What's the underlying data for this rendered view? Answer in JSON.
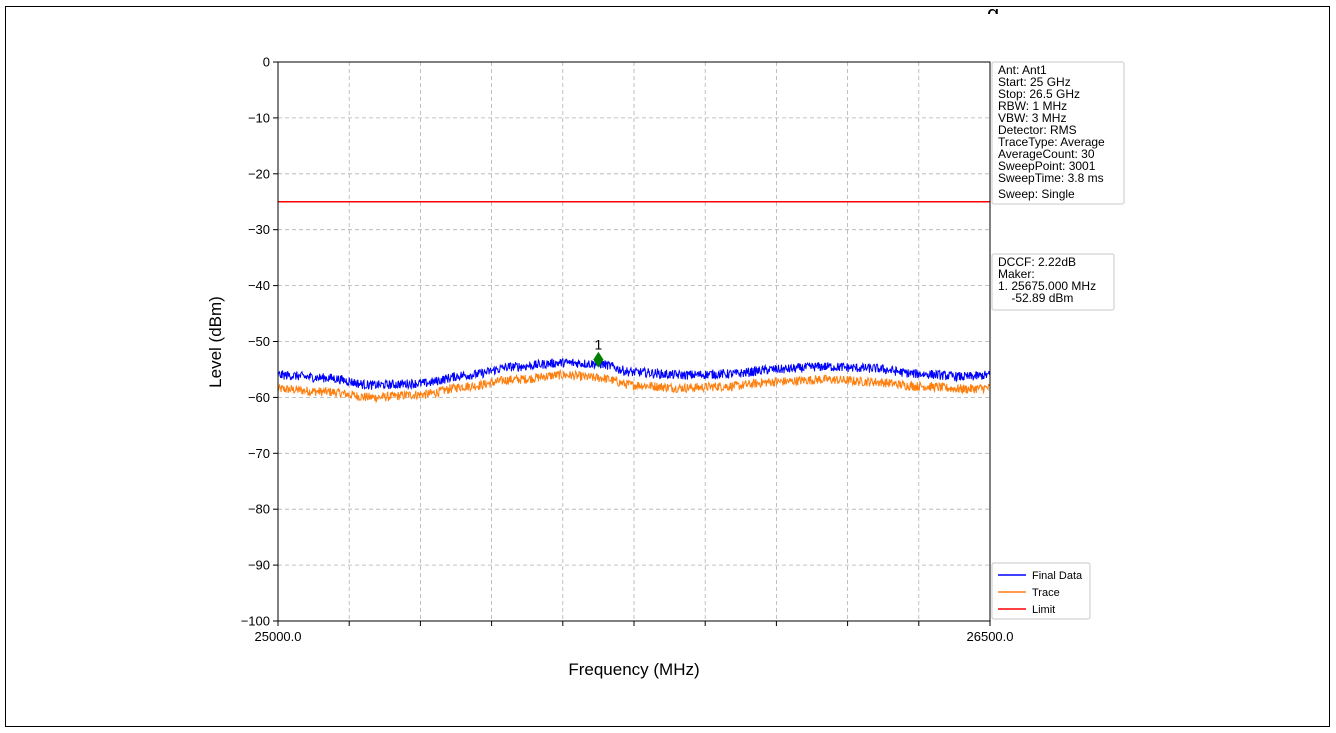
{
  "page": {
    "top_glyph": "g"
  },
  "chart_data": {
    "type": "line",
    "xlabel": "Frequency (MHz)",
    "ylabel": "Level (dBm)",
    "xlim": [
      25000.0,
      26500.0
    ],
    "ylim": [
      -100,
      0
    ],
    "x_tick_labels": [
      "25000.0",
      "26500.0"
    ],
    "x_minor_ticks": [
      25150,
      25300,
      25450,
      25600,
      25750,
      25900,
      26050,
      26200,
      26350
    ],
    "y_ticks": [
      0,
      -10,
      -20,
      -30,
      -40,
      -50,
      -60,
      -70,
      -80,
      -90,
      -100
    ],
    "y_tick_labels": [
      "0",
      "−10",
      "−20",
      "−30",
      "−40",
      "−50",
      "−60",
      "−70",
      "−80",
      "−90",
      "−100"
    ],
    "grid": true,
    "limit": -25,
    "series": [
      {
        "name": "Final Data",
        "color": "#0000ff",
        "noise": 0.6,
        "x": [
          25000,
          25100,
          25200,
          25300,
          25400,
          25500,
          25600,
          25675,
          25750,
          25850,
          25950,
          26050,
          26150,
          26250,
          26350,
          26450,
          26500
        ],
        "y": [
          -56.0,
          -56.5,
          -57.8,
          -57.5,
          -56.0,
          -54.5,
          -53.8,
          -54.0,
          -55.5,
          -56.0,
          -55.8,
          -55.0,
          -54.5,
          -54.8,
          -55.8,
          -56.3,
          -56.0
        ]
      },
      {
        "name": "Trace",
        "color": "#ff7f0e",
        "noise": 0.6,
        "x": [
          25000,
          25100,
          25200,
          25300,
          25400,
          25500,
          25600,
          25675,
          25750,
          25850,
          25950,
          26050,
          26150,
          26250,
          26350,
          26450,
          26500
        ],
        "y": [
          -58.5,
          -59.0,
          -60.0,
          -59.5,
          -58.0,
          -56.8,
          -56.0,
          -56.5,
          -57.8,
          -58.3,
          -58.0,
          -57.2,
          -56.8,
          -57.2,
          -58.0,
          -58.5,
          -58.3
        ]
      },
      {
        "name": "Limit",
        "color": "#ff0000",
        "x": [
          25000,
          26500
        ],
        "y": [
          -25,
          -25
        ]
      }
    ],
    "marker": {
      "label": "1",
      "x": 25675.0,
      "y": -52.89,
      "color": "#008000"
    },
    "info_box": [
      "Ant: Ant1",
      "Start: 25 GHz",
      "Stop: 26.5 GHz",
      "RBW: 1 MHz",
      "VBW: 3 MHz",
      "Detector: RMS",
      "TraceType: Average",
      "AverageCount: 30",
      "SweepPoint: 3001",
      "SweepTime: 3.8 ms",
      "Sweep: Single"
    ],
    "marker_box": [
      "DCCF: 2.22dB",
      "Maker:",
      "1. 25675.000 MHz",
      "    -52.89 dBm"
    ],
    "legend": {
      "placement": "bottom-right",
      "entries": [
        "Final Data",
        "Trace",
        "Limit"
      ]
    }
  }
}
